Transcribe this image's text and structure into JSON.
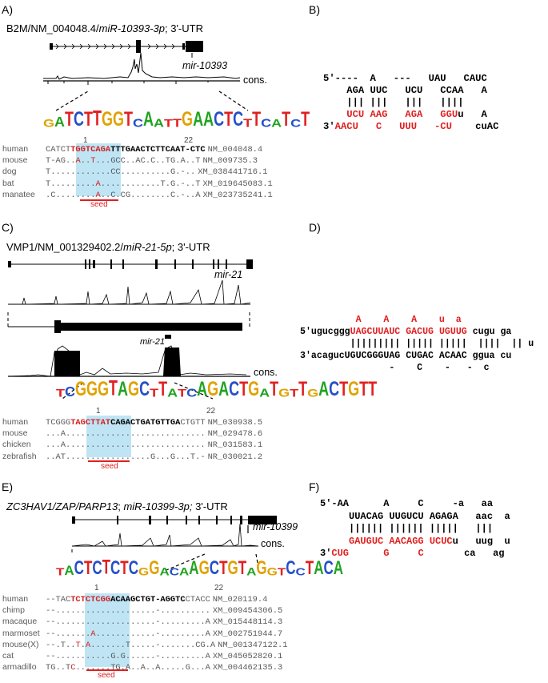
{
  "panels": {
    "A": {
      "label": "A)",
      "title_prefix": "B2M/NM_004048.4/",
      "title_mirna": "miR-10393-3p",
      "title_suffix": "; 3'-UTR",
      "mir_label": "mir-10393",
      "cons_label": "cons.",
      "pos_start": "1",
      "pos_end": "22",
      "seed_label": "seed",
      "alignment": [
        {
          "species": "human",
          "pre": "CATCT",
          "seed": "TGGTCAGA",
          "post": "TTTGAACTCTTCAAT-CTC",
          "acc": "NM_004048.4",
          "bold": true
        },
        {
          "species": "mouse",
          "pre": "T-AG.",
          "seed": ".A..T...",
          "post": "GCC..AC.C..TG.A..T",
          "acc": "NM_009735.3",
          "bold": false
        },
        {
          "species": "dog",
          "pre": "T....",
          "seed": "........",
          "post": "CC..........G.-..",
          "acc": "XM_038441716.1",
          "bold": false
        },
        {
          "species": "bat",
          "pre": "T....",
          "seed": ".....A..",
          "post": "..........T.G.-..T",
          "acc": "XM_019645083.1",
          "bold": false
        },
        {
          "species": "manatee",
          "pre": ".C...",
          "seed": ".....A..",
          "post": "C.CG........C.-..A",
          "acc": "XM_023735241.1",
          "bold": false
        }
      ]
    },
    "B": {
      "label": "B)",
      "lines": [
        [
          {
            "t": "5'----  A   ---   UAU   CAUC",
            "r": false
          }
        ],
        [
          {
            "t": "    AGA UUC   UCU   CCAA   A",
            "r": false
          }
        ],
        [
          {
            "t": "    ||| |||   |||   ||||",
            "r": false
          }
        ],
        [
          {
            "t": "    ",
            "r": false
          },
          {
            "t": "UCU AAG   AGA   GGU",
            "r": true
          },
          {
            "t": "u   A",
            "r": false
          }
        ],
        [
          {
            "t": "3'",
            "r": false
          },
          {
            "t": "AACU   C   UUU   -CU",
            "r": true
          },
          {
            "t": "    cuAC",
            "r": false
          }
        ]
      ]
    },
    "C": {
      "label": "C)",
      "title_prefix": "VMP1/NM_001329402.2/",
      "title_mirna": "miR-21-5p",
      "title_suffix": "; 3'-UTR",
      "mir_label_top": "mir-21",
      "mir_label_mid": "mir-21",
      "cons_label": "cons.",
      "pos_start": "1",
      "pos_end": "22",
      "seed_label": "seed",
      "alignment": [
        {
          "species": "human",
          "pre": "TCGGG",
          "seed": "TAGCTTAT",
          "post": "CAGACTGATGTTGA",
          "tail": "CTGTT",
          "acc": "NM_030938.5",
          "bold": true
        },
        {
          "species": "mouse",
          "pre": "...A.",
          "seed": "........",
          "post": "..............",
          "tail": ".....",
          "acc": "NM_029478.6",
          "bold": false
        },
        {
          "species": "chicken",
          "pre": "...A.",
          "seed": "........",
          "post": "..............",
          "tail": ".....",
          "acc": "NR_031583.1",
          "bold": false
        },
        {
          "species": "zebrafish",
          "pre": "..AT.",
          "seed": "........",
          "post": "........G...G.",
          "tail": "..T.-",
          "acc": "NR_030021.2",
          "bold": false
        }
      ]
    },
    "D": {
      "label": "D)",
      "lines": [
        [
          {
            "t": "          A    A    A    u  a",
            "r": true
          }
        ],
        [
          {
            "t": "5'ugucggg",
            "r": false
          },
          {
            "t": "UAGCUUAUC GACUG UGUUG",
            "r": true
          },
          {
            "t": " cugu ga",
            "r": false
          }
        ],
        [
          {
            "t": "         ||||||||| ||||| |||||  ||||  || u",
            "r": false
          }
        ],
        [
          {
            "t": "3'acagucUGUCGGGUAG CUGAC ACAAC ggua cu",
            "r": false
          }
        ],
        [
          {
            "t": "                -    C    -   -  c",
            "r": false
          }
        ]
      ]
    },
    "E": {
      "label": "E)",
      "title_prefix": "ZC3HAV1/ZAP/PARP13",
      "title_mid": "; ",
      "title_mirna": "miR-10399-3p;",
      "title_suffix": " 3'-UTR",
      "mir_label": "mir-10399",
      "cons_label": "cons.",
      "pos_start": "1",
      "pos_end": "22",
      "seed_label": "seed",
      "alignment": [
        {
          "species": "human",
          "pre": "--TAC",
          "seed": "TCTCTCGG",
          "post": "ACAAGCTGT-AGGTC",
          "tail": "CTACC",
          "acc": "NM_020119.4",
          "bold": true
        },
        {
          "species": "chimp",
          "pre": "--...",
          "seed": "........",
          "post": ".........-.....",
          "tail": ".....",
          "acc": "XM_009454306.5",
          "bold": false
        },
        {
          "species": "macaque",
          "pre": "--...",
          "seed": "........",
          "post": ".........-.....",
          "tail": "....A",
          "acc": "XM_015448114.3",
          "bold": false
        },
        {
          "species": "marmoset",
          "pre": "--...",
          "seed": "....A...",
          "post": ".........-.....",
          "tail": "....A",
          "acc": "XM_002751944.7",
          "bold": false
        },
        {
          "species": "mouse(X)",
          "pre": "--.T.",
          "seed": ".T.A....",
          "post": "...T.....-.....",
          "tail": "..CG.A",
          "acc": "NM_001347122.1",
          "bold": false
        },
        {
          "species": "cat",
          "pre": "--...",
          "seed": "........",
          "post": "G.G......-.....",
          "tail": "....A",
          "acc": "XM_045052820.1",
          "bold": false
        },
        {
          "species": "armadillo",
          "pre": "TG..T",
          "seed": "C.......",
          "post": "TG.A..A..A.....",
          "tail": "G...A",
          "acc": "XM_004462135.3",
          "bold": false
        }
      ]
    },
    "F": {
      "label": "F)",
      "lines": [
        [
          {
            "t": "5'-AA      A     C     -a   aa",
            "r": false
          }
        ],
        [
          {
            "t": "     UUACAG UUGUCU AGAGA   aac  a",
            "r": false
          }
        ],
        [
          {
            "t": "     |||||| |||||| |||||   |||",
            "r": false
          }
        ],
        [
          {
            "t": "     ",
            "r": false
          },
          {
            "t": "GAUGUC AACAGG UCUC",
            "r": true
          },
          {
            "t": "u   uug  u",
            "r": false
          }
        ],
        [
          {
            "t": "3'",
            "r": false
          },
          {
            "t": "CUG",
            "r": true
          },
          {
            "t": "      ",
            "r": false
          },
          {
            "t": "G",
            "r": true
          },
          {
            "t": "     ",
            "r": false
          },
          {
            "t": "C",
            "r": true
          },
          {
            "t": "       ca   ag",
            "r": false
          }
        ]
      ]
    }
  },
  "logos": {
    "A": [
      "G",
      "A",
      "T",
      "C",
      "T",
      "T",
      "G",
      "G",
      "T",
      "C",
      "A",
      "A",
      "T",
      "T",
      "G",
      "A",
      "A",
      "C",
      "T",
      "C",
      "T",
      "T",
      "C",
      "A",
      "T",
      "C",
      "T"
    ],
    "C": [
      "T",
      "C",
      "G",
      "G",
      "G",
      "T",
      "A",
      "G",
      "C",
      "T",
      "T",
      "A",
      "T",
      "C",
      "A",
      "G",
      "A",
      "C",
      "T",
      "G",
      "A",
      "T",
      "G",
      "T",
      "T",
      "G",
      "A",
      "C",
      "T",
      "G",
      "T",
      "T"
    ],
    "E": [
      "T",
      "A",
      "C",
      "T",
      "C",
      "T",
      "C",
      "T",
      "C",
      "G",
      "G",
      "A",
      "C",
      "A",
      "A",
      "G",
      "C",
      "T",
      "G",
      "T",
      "A",
      "G",
      "G",
      "T",
      "C",
      "C",
      "T",
      "A",
      "C",
      "A"
    ]
  },
  "colors": {
    "A": "#21a321",
    "C": "#2450c8",
    "G": "#e0a200",
    "T": "#e02020",
    "seed_bg": "#bfe5f5",
    "accent": "#e02020"
  }
}
